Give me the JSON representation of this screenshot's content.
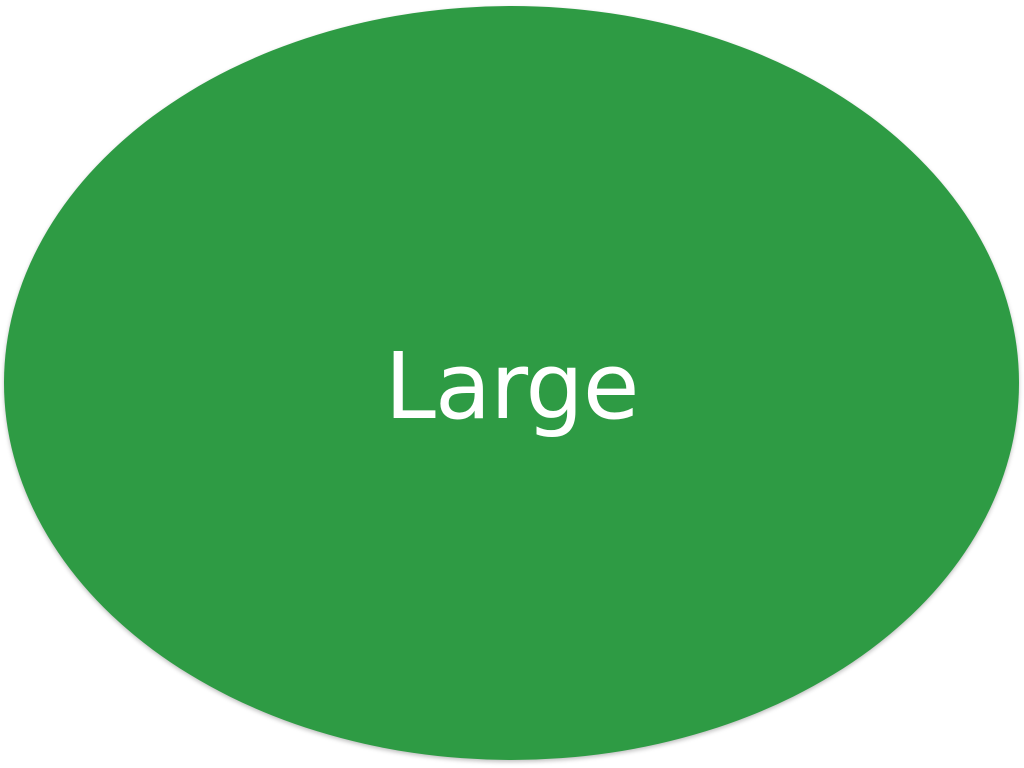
{
  "shape": {
    "kind": "oval",
    "label": "Large",
    "fill_color": "#2e9b44",
    "text_color": "#ffffff"
  }
}
